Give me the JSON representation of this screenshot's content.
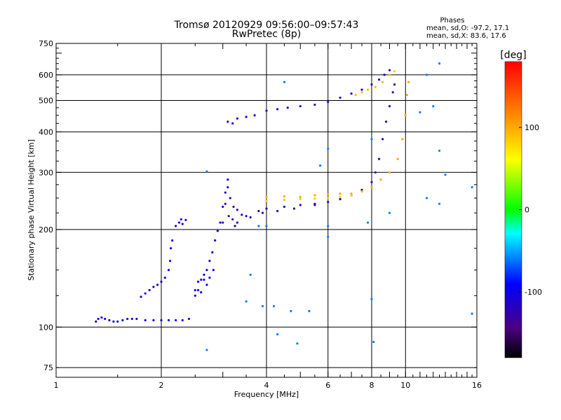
{
  "chart_data": {
    "type": "scatter",
    "title_line1": "Tromsø 20120929 09:56:00–09:57:43",
    "title_line2": "RwPretec (8p)",
    "stats": {
      "heading": "Phases",
      "o_line": "mean, sd,O: -97.2, 17.1",
      "x_line": "mean, sd,X:  83.6, 17.6"
    },
    "xlabel": "Frequency [MHz]",
    "ylabel": "Stationary phase Virtual Height [km]",
    "x_scale": "log",
    "y_scale": "log",
    "xlim": [
      1,
      16
    ],
    "ylim": [
      70,
      750
    ],
    "x_ticks": [
      1,
      2,
      4,
      6,
      8,
      10,
      16
    ],
    "x_tick_labels": [
      "1",
      "2",
      "4",
      "6",
      "8",
      "10",
      "16"
    ],
    "y_ticks": [
      75,
      100,
      200,
      300,
      400,
      500,
      600,
      750
    ],
    "y_tick_labels": [
      "75",
      "100",
      "200",
      "300",
      "400",
      "500",
      "600",
      "750"
    ],
    "grid": true,
    "colorbar": {
      "label": "[deg]",
      "min": -180,
      "max": 180,
      "ticks": [
        100,
        0,
        -100
      ],
      "tick_labels": [
        "100",
        "0",
        "-100"
      ]
    },
    "series": [
      {
        "points": [
          [
            1.3,
            104
          ],
          [
            1.32,
            106
          ],
          [
            1.35,
            107
          ],
          [
            1.38,
            106
          ],
          [
            1.42,
            105
          ],
          [
            1.46,
            104
          ],
          [
            1.5,
            104
          ],
          [
            1.55,
            105
          ],
          [
            1.6,
            106
          ],
          [
            1.65,
            106
          ],
          [
            1.7,
            106
          ],
          [
            1.8,
            105
          ],
          [
            1.9,
            105
          ],
          [
            2.0,
            105
          ],
          [
            2.1,
            105
          ],
          [
            2.2,
            105
          ],
          [
            2.3,
            105
          ],
          [
            2.4,
            106
          ]
        ],
        "phase": -105
      },
      {
        "points": [
          [
            1.75,
            124
          ],
          [
            1.8,
            127
          ],
          [
            1.85,
            130
          ],
          [
            1.9,
            133
          ],
          [
            1.95,
            135
          ],
          [
            2.0,
            138
          ],
          [
            2.05,
            142
          ],
          [
            2.1,
            150
          ],
          [
            2.12,
            160
          ],
          [
            2.13,
            175
          ],
          [
            2.15,
            185
          ]
        ],
        "phase": -110
      },
      {
        "points": [
          [
            2.2,
            205
          ],
          [
            2.25,
            210
          ],
          [
            2.28,
            215
          ],
          [
            2.3,
            208
          ],
          [
            2.35,
            214
          ]
        ],
        "phase": -105
      },
      {
        "points": [
          [
            2.5,
            125
          ],
          [
            2.55,
            130
          ],
          [
            2.6,
            140
          ],
          [
            2.65,
            145
          ],
          [
            2.7,
            150
          ],
          [
            2.75,
            160
          ],
          [
            2.8,
            170
          ],
          [
            2.85,
            185
          ],
          [
            2.9,
            198
          ],
          [
            2.95,
            210
          ],
          [
            3.0,
            235
          ],
          [
            3.05,
            260
          ],
          [
            3.1,
            285
          ]
        ],
        "phase": -110
      },
      {
        "points": [
          [
            2.5,
            130
          ],
          [
            2.55,
            138
          ],
          [
            2.6,
            128
          ],
          [
            2.65,
            140
          ],
          [
            2.7,
            135
          ],
          [
            2.75,
            142
          ],
          [
            2.82,
            150
          ]
        ],
        "phase": -95
      },
      {
        "points": [
          [
            3.0,
            210
          ],
          [
            3.05,
            240
          ],
          [
            3.1,
            270
          ],
          [
            3.12,
            220
          ],
          [
            3.15,
            250
          ],
          [
            3.2,
            215
          ],
          [
            3.22,
            235
          ],
          [
            3.25,
            205
          ],
          [
            3.3,
            230
          ]
        ],
        "phase": -130
      },
      {
        "points": [
          [
            3.3,
            210
          ],
          [
            3.5,
            220
          ],
          [
            3.8,
            228
          ],
          [
            4.0,
            232
          ],
          [
            4.5,
            235
          ],
          [
            5.0,
            238
          ],
          [
            5.5,
            240
          ],
          [
            6.0,
            243
          ],
          [
            6.5,
            248
          ],
          [
            7.0,
            255
          ],
          [
            7.5,
            265
          ],
          [
            8.0,
            280
          ],
          [
            8.2,
            300
          ],
          [
            8.4,
            330
          ],
          [
            8.6,
            380
          ],
          [
            8.8,
            430
          ],
          [
            9.0,
            480
          ],
          [
            9.2,
            530
          ],
          [
            9.3,
            560
          ]
        ],
        "phase": -120
      },
      {
        "points": [
          [
            3.4,
            222
          ],
          [
            3.6,
            218
          ],
          [
            3.9,
            225
          ],
          [
            4.3,
            228
          ],
          [
            4.8,
            232
          ],
          [
            5.5,
            238
          ]
        ],
        "phase": -128
      },
      {
        "points": [
          [
            4.0,
            252
          ],
          [
            4.5,
            253
          ],
          [
            5.0,
            252
          ],
          [
            5.5,
            255
          ],
          [
            6.0,
            257
          ],
          [
            6.5,
            258
          ],
          [
            7.0,
            258
          ],
          [
            7.5,
            262
          ],
          [
            8.0,
            270
          ],
          [
            8.5,
            285
          ],
          [
            9.0,
            300
          ],
          [
            9.5,
            330
          ],
          [
            9.8,
            380
          ],
          [
            10.0,
            450
          ],
          [
            10.1,
            520
          ],
          [
            10.2,
            570
          ]
        ],
        "phase": 100
      },
      {
        "points": [
          [
            4.0,
            245
          ],
          [
            4.5,
            247
          ],
          [
            5.0,
            248
          ],
          [
            5.5,
            249
          ],
          [
            6.0,
            250
          ],
          [
            6.5,
            252
          ],
          [
            7.0,
            255
          ]
        ],
        "phase": 85
      },
      {
        "points": [
          [
            3.1,
            430
          ],
          [
            3.2,
            425
          ],
          [
            3.3,
            440
          ],
          [
            3.5,
            445
          ],
          [
            3.7,
            450
          ],
          [
            4.0,
            465
          ],
          [
            4.3,
            470
          ],
          [
            4.6,
            475
          ],
          [
            5.0,
            480
          ],
          [
            5.5,
            485
          ],
          [
            6.0,
            495
          ],
          [
            6.5,
            510
          ],
          [
            7.0,
            525
          ],
          [
            7.5,
            540
          ],
          [
            8.0,
            560
          ],
          [
            8.4,
            580
          ],
          [
            8.7,
            600
          ],
          [
            9.0,
            620
          ]
        ],
        "phase": -115
      },
      {
        "points": [
          [
            7.2,
            520
          ],
          [
            7.5,
            530
          ],
          [
            7.8,
            540
          ],
          [
            8.2,
            550
          ],
          [
            8.6,
            570
          ],
          [
            9.0,
            600
          ],
          [
            9.3,
            615
          ]
        ],
        "phase": 90
      },
      {
        "points": [
          [
            2.7,
            302
          ],
          [
            5.7,
            315
          ],
          [
            6.0,
            355
          ],
          [
            8.0,
            380
          ],
          [
            4.5,
            570
          ],
          [
            6.0,
            205
          ],
          [
            4.0,
            205
          ],
          [
            3.5,
            120
          ],
          [
            3.9,
            116
          ],
          [
            4.2,
            116
          ],
          [
            4.7,
            112
          ],
          [
            5.3,
            112
          ],
          [
            4.9,
            89
          ],
          [
            4.3,
            95
          ],
          [
            8.1,
            90
          ],
          [
            8.0,
            122
          ],
          [
            7.8,
            210
          ],
          [
            9.0,
            225
          ],
          [
            11.5,
            250
          ],
          [
            12.5,
            240
          ],
          [
            13.0,
            295
          ],
          [
            15.5,
            270
          ],
          [
            15.5,
            110
          ],
          [
            12.5,
            650
          ],
          [
            12.5,
            350
          ],
          [
            12.0,
            480
          ],
          [
            11.5,
            600
          ],
          [
            11.0,
            460
          ],
          [
            3.6,
            145
          ],
          [
            3.8,
            205
          ],
          [
            2.7,
            85
          ],
          [
            6.0,
            190
          ]
        ],
        "phase": -60
      }
    ]
  }
}
